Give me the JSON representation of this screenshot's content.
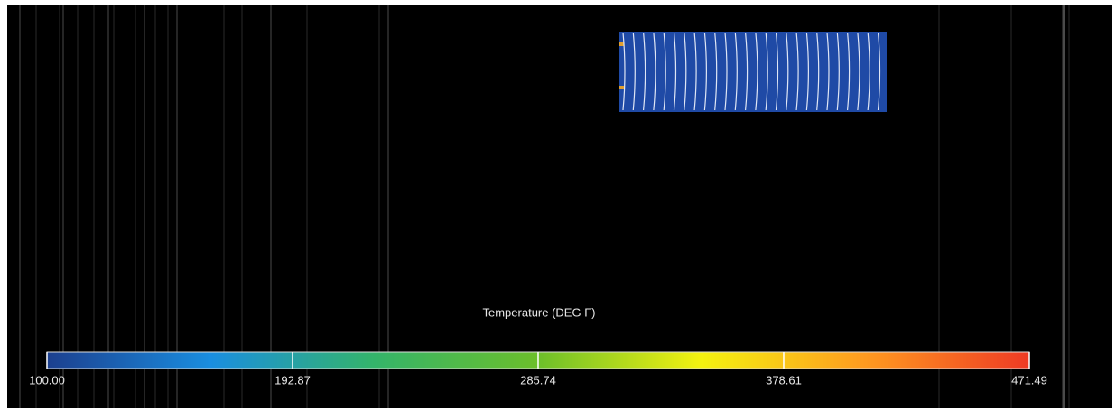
{
  "colorbar": {
    "title": "Temperature (DEG F)",
    "range": [
      100,
      471.49
    ],
    "ticks": [
      {
        "value": 100,
        "label": "100.00"
      },
      {
        "value": 192.87,
        "label": "192.87"
      },
      {
        "value": 285.74,
        "label": "285.74"
      },
      {
        "value": 378.61,
        "label": "378.61"
      },
      {
        "value": 471.49,
        "label": "471.49"
      }
    ],
    "colors": [
      "#1c3f8e",
      "#1a8ee0",
      "#34b46a",
      "#6cbf2a",
      "#f4f210",
      "#ff9a20",
      "#ee3a24"
    ]
  }
}
